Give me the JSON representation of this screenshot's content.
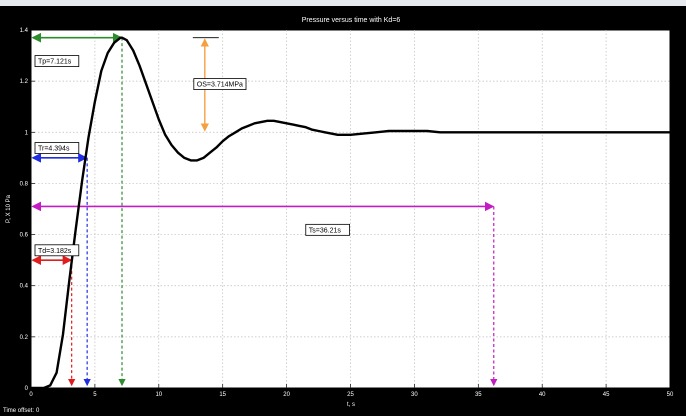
{
  "window": {
    "time_offset_label": "Time offset:",
    "time_offset_value": "0"
  },
  "chart_data": {
    "type": "line",
    "title": "Pressure versus time with Kd=6",
    "xlabel": "t, s",
    "ylabel": "P, X 10 Pa",
    "xlim": [
      0,
      50
    ],
    "ylim": [
      0,
      1.4
    ],
    "xticks": [
      0,
      5,
      10,
      15,
      20,
      25,
      30,
      35,
      40,
      45,
      50
    ],
    "yticks": [
      0,
      0.2,
      0.4,
      0.6,
      0.8,
      1,
      1.2,
      1.4
    ],
    "xtick_labels": [
      "0",
      "5",
      "10",
      "15",
      "20",
      "25",
      "30",
      "35",
      "40",
      "45",
      "50"
    ],
    "ytick_labels": [
      "0",
      "0.2",
      "0.4",
      "0.6",
      "0.8",
      "1",
      "1.2",
      "1.4"
    ],
    "grid": true,
    "colors": {
      "background": "#000000",
      "plot_area": "#ffffff",
      "curve": "#000000",
      "grid": "#bdbdbd",
      "tp": "#2e8b2e",
      "tr": "#1f2fe0",
      "td": "#e01c1c",
      "ts": "#c21cc2",
      "os": "#f5a040"
    },
    "series": [
      {
        "x": [
          0,
          0.5,
          1,
          1.5,
          2,
          2.5,
          3,
          3.5,
          4,
          4.5,
          5,
          5.5,
          6,
          6.5,
          7,
          7.121,
          7.5,
          8,
          8.5,
          9,
          9.5,
          10,
          10.5,
          11,
          11.5,
          12,
          12.5,
          13,
          13.5,
          14,
          14.5,
          15,
          15.5,
          16,
          16.5,
          17,
          17.5,
          18,
          18.5,
          19,
          19.5,
          20,
          20.5,
          21,
          21.5,
          22,
          22.5,
          23,
          24,
          25,
          26,
          27,
          28,
          29,
          30,
          31,
          32,
          34,
          36,
          38,
          40,
          42,
          44,
          46,
          48,
          50
        ],
        "y": [
          0,
          0,
          0,
          0.01,
          0.06,
          0.21,
          0.42,
          0.62,
          0.81,
          0.98,
          1.12,
          1.24,
          1.31,
          1.35,
          1.37,
          1.37,
          1.36,
          1.32,
          1.26,
          1.19,
          1.12,
          1.05,
          0.99,
          0.95,
          0.92,
          0.9,
          0.89,
          0.89,
          0.9,
          0.92,
          0.94,
          0.965,
          0.985,
          1.0,
          1.015,
          1.025,
          1.035,
          1.04,
          1.045,
          1.045,
          1.04,
          1.035,
          1.03,
          1.025,
          1.02,
          1.01,
          1.005,
          1.0,
          0.99,
          0.99,
          0.995,
          1.0,
          1.005,
          1.005,
          1.005,
          1.005,
          1.0,
          1.0,
          1.0,
          1.0,
          1.0,
          1.0,
          1.0,
          1.0,
          1.0,
          1.0
        ]
      }
    ],
    "annotations": [
      {
        "key": "tp",
        "label": "Tp=7.121s",
        "x": 7.121,
        "y": 1.37
      },
      {
        "key": "tr",
        "label": "Tr=4.394s",
        "x": 4.394,
        "y": 0.9
      },
      {
        "key": "td",
        "label": "Td=3.182s",
        "x": 3.182,
        "y": 0.5
      },
      {
        "key": "ts",
        "label": "Ts=36.21s",
        "x": 36.21,
        "y": 0.71
      },
      {
        "key": "os",
        "label": "OS=3.714MPa",
        "x": 13.6,
        "y_top": 1.37,
        "y_bottom": 1.0
      }
    ]
  }
}
